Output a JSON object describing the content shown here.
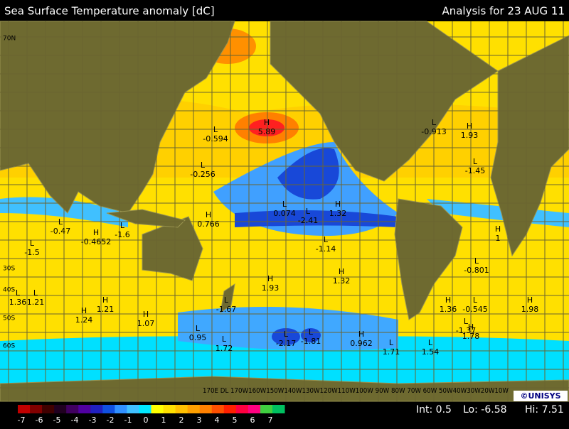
{
  "header": {
    "title": "Sea Surface Temperature anomaly [dC]",
    "date": "Analysis for 23 AUG 11"
  },
  "lat_labels": [
    "70N",
    "30S",
    "40S",
    "50S",
    "60S"
  ],
  "markers": [
    {
      "kind": "H",
      "value": "5.89"
    },
    {
      "kind": "L",
      "value": "-0.594"
    },
    {
      "kind": "L",
      "value": "-0.256"
    },
    {
      "kind": "H",
      "value": "0.766"
    },
    {
      "kind": "L",
      "value": "-1.6"
    },
    {
      "kind": "H",
      "value": "-0.4652"
    },
    {
      "kind": "L",
      "value": "-0.47"
    },
    {
      "kind": "L",
      "value": "-1.5"
    },
    {
      "kind": "L",
      "value": "1.36"
    },
    {
      "kind": "L",
      "value": "1.21"
    },
    {
      "kind": "H",
      "value": "1.21"
    },
    {
      "kind": "H",
      "value": "1.24"
    },
    {
      "kind": "H",
      "value": "1.07"
    },
    {
      "kind": "L",
      "value": "0.95"
    },
    {
      "kind": "L",
      "value": "1.72"
    },
    {
      "kind": "L",
      "value": "-1.67"
    },
    {
      "kind": "H",
      "value": "1.93"
    },
    {
      "kind": "H",
      "value": "1.32"
    },
    {
      "kind": "L",
      "value": "-2.17"
    },
    {
      "kind": "L",
      "value": "-1.81"
    },
    {
      "kind": "H",
      "value": "0.962"
    },
    {
      "kind": "L",
      "value": "1.71"
    },
    {
      "kind": "L",
      "value": "0.074"
    },
    {
      "kind": "L",
      "value": "-2.41"
    },
    {
      "kind": "H",
      "value": "1.32"
    },
    {
      "kind": "L",
      "value": "-1.14"
    },
    {
      "kind": "L",
      "value": "-0.913"
    },
    {
      "kind": "H",
      "value": "1.93"
    },
    {
      "kind": "L",
      "value": "-1.45"
    },
    {
      "kind": "H",
      "value": "1"
    },
    {
      "kind": "L",
      "value": "-0.801"
    },
    {
      "kind": "H",
      "value": "1.36"
    },
    {
      "kind": "L",
      "value": "-0.545"
    },
    {
      "kind": "H",
      "value": "1.98"
    },
    {
      "kind": "L",
      "value": "-1.37"
    },
    {
      "kind": "H",
      "value": "1.78"
    },
    {
      "kind": "L",
      "value": "1.54"
    }
  ],
  "lon_labels": "170E DL 170W160W150W140W130W120W110W100W 90W 80W 70W 60W 50W40W30W20W10W",
  "colorbar": {
    "labels": [
      "-7",
      "-6",
      "-5",
      "-4",
      "-3",
      "-2",
      "-1",
      "0",
      "1",
      "2",
      "3",
      "4",
      "5",
      "6",
      "7"
    ],
    "colors": [
      "#c00000",
      "#800000",
      "#400000",
      "#200020",
      "#400060",
      "#5000a0",
      "#2020c0",
      "#1050e0",
      "#3090ff",
      "#40c0ff",
      "#00e8ff",
      "#ffff00",
      "#ffe000",
      "#ffc000",
      "#ffa000",
      "#ff8000",
      "#ff5000",
      "#ff2000",
      "#ff0040",
      "#ff0080",
      "#40d040",
      "#00c060"
    ]
  },
  "footer": {
    "int": "Int: 0.5",
    "lo": "Lo: -6.58",
    "hi": "Hi: 7.51",
    "logo": "©UNISYS"
  }
}
